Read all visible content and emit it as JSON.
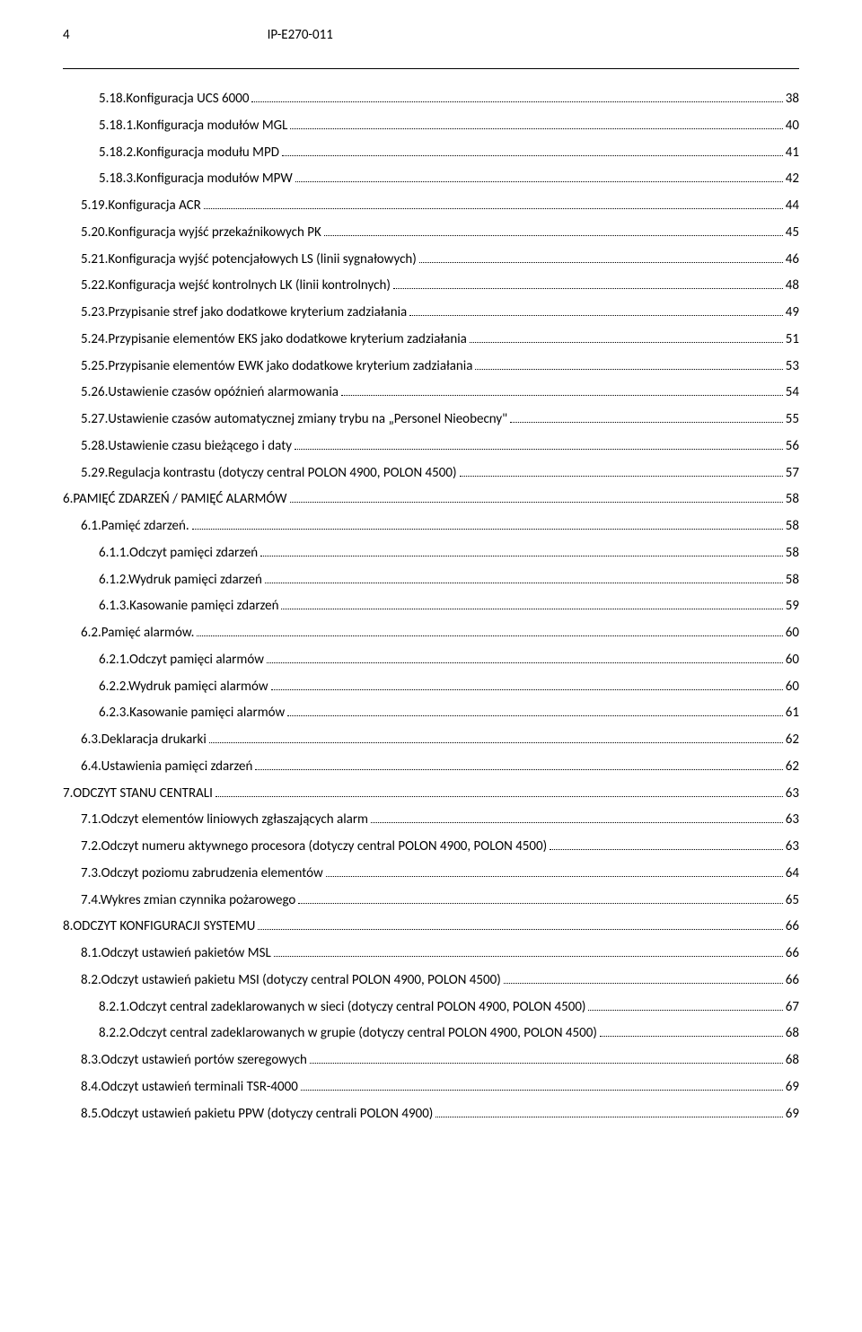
{
  "header": {
    "page_number": "4",
    "doc_id": "IP-E270-011"
  },
  "toc": [
    {
      "indent": 0,
      "title": "5.18.Konfiguracja UCS 6000",
      "page": "38"
    },
    {
      "indent": 0,
      "title": "5.18.1.Konfiguracja modułów MGL",
      "page": "40"
    },
    {
      "indent": 0,
      "title": "5.18.2.Konfiguracja modułu MPD",
      "page": "41"
    },
    {
      "indent": 0,
      "title": "5.18.3.Konfiguracja modułów MPW",
      "page": "42"
    },
    {
      "indent": 1,
      "title": "5.19.Konfiguracja ACR",
      "page": "44"
    },
    {
      "indent": 1,
      "title": "5.20.Konfiguracja wyjść przekaźnikowych PK",
      "page": "45"
    },
    {
      "indent": 1,
      "title": "5.21.Konfiguracja wyjść potencjałowych LS (linii sygnałowych)",
      "page": "46"
    },
    {
      "indent": 1,
      "title": "5.22.Konfiguracja wejść kontrolnych LK (linii kontrolnych)",
      "page": "48"
    },
    {
      "indent": 1,
      "title": "5.23.Przypisanie stref jako dodatkowe kryterium zadziałania",
      "page": "49"
    },
    {
      "indent": 1,
      "title": "5.24.Przypisanie elementów EKS jako dodatkowe kryterium zadziałania",
      "page": "51"
    },
    {
      "indent": 1,
      "title": "5.25.Przypisanie elementów EWK jako dodatkowe kryterium zadziałania",
      "page": "53"
    },
    {
      "indent": 1,
      "title": "5.26.Ustawienie czasów opóźnień alarmowania",
      "page": "54"
    },
    {
      "indent": 1,
      "title": "5.27.Ustawienie czasów automatycznej zmiany trybu na „Personel Nieobecny\"",
      "page": "55"
    },
    {
      "indent": 1,
      "title": "5.28.Ustawienie czasu bieżącego i daty",
      "page": "56"
    },
    {
      "indent": 1,
      "title": "5.29.Regulacja kontrastu (dotyczy central POLON 4900, POLON 4500)",
      "page": "57"
    },
    {
      "indent": 2,
      "title": "6.PAMIĘĆ ZDARZEŃ / PAMIĘĆ ALARMÓW",
      "page": "58"
    },
    {
      "indent": 1,
      "title": "6.1.Pamięć zdarzeń.",
      "page": "58"
    },
    {
      "indent": 0,
      "title": "6.1.1.Odczyt pamięci zdarzeń",
      "page": "58"
    },
    {
      "indent": 0,
      "title": "6.1.2.Wydruk pamięci zdarzeń",
      "page": "58"
    },
    {
      "indent": 0,
      "title": "6.1.3.Kasowanie pamięci zdarzeń",
      "page": "59"
    },
    {
      "indent": 1,
      "title": "6.2.Pamięć alarmów.",
      "page": "60"
    },
    {
      "indent": 0,
      "title": "6.2.1.Odczyt pamięci alarmów",
      "page": "60"
    },
    {
      "indent": 0,
      "title": "6.2.2.Wydruk pamięci alarmów",
      "page": "60"
    },
    {
      "indent": 0,
      "title": "6.2.3.Kasowanie pamięci alarmów",
      "page": "61"
    },
    {
      "indent": 1,
      "title": "6.3.Deklaracja drukarki",
      "page": "62"
    },
    {
      "indent": 1,
      "title": "6.4.Ustawienia pamięci zdarzeń",
      "page": "62"
    },
    {
      "indent": 2,
      "title": "7.ODCZYT STANU CENTRALI",
      "page": "63"
    },
    {
      "indent": 1,
      "title": "7.1.Odczyt elementów  liniowych zgłaszających alarm",
      "page": "63"
    },
    {
      "indent": 1,
      "title": "7.2.Odczyt numeru aktywnego procesora (dotyczy central POLON 4900, POLON 4500)",
      "page": "63"
    },
    {
      "indent": 1,
      "title": "7.3.Odczyt poziomu zabrudzenia elementów",
      "page": "64"
    },
    {
      "indent": 1,
      "title": "7.4.Wykres zmian czynnika pożarowego",
      "page": "65"
    },
    {
      "indent": 2,
      "title": "8.ODCZYT KONFIGURACJI SYSTEMU",
      "page": "66"
    },
    {
      "indent": 1,
      "title": "8.1.Odczyt ustawień pakietów MSL",
      "page": "66"
    },
    {
      "indent": 1,
      "title": "8.2.Odczyt ustawień pakietu MSI (dotyczy central POLON 4900, POLON 4500)",
      "page": "66"
    },
    {
      "indent": 0,
      "title": "8.2.1.Odczyt central zadeklarowanych w sieci (dotyczy central POLON 4900, POLON 4500)",
      "page": "67"
    },
    {
      "indent": 0,
      "title": "8.2.2.Odczyt central zadeklarowanych w grupie (dotyczy central POLON 4900, POLON 4500)",
      "page": "68"
    },
    {
      "indent": 1,
      "title": "8.3.Odczyt ustawień portów szeregowych",
      "page": "68"
    },
    {
      "indent": 1,
      "title": "8.4.Odczyt ustawień terminali TSR-4000",
      "page": "69"
    },
    {
      "indent": 1,
      "title": "8.5.Odczyt ustawień pakietu PPW (dotyczy centrali POLON 4900)",
      "page": "69"
    }
  ]
}
